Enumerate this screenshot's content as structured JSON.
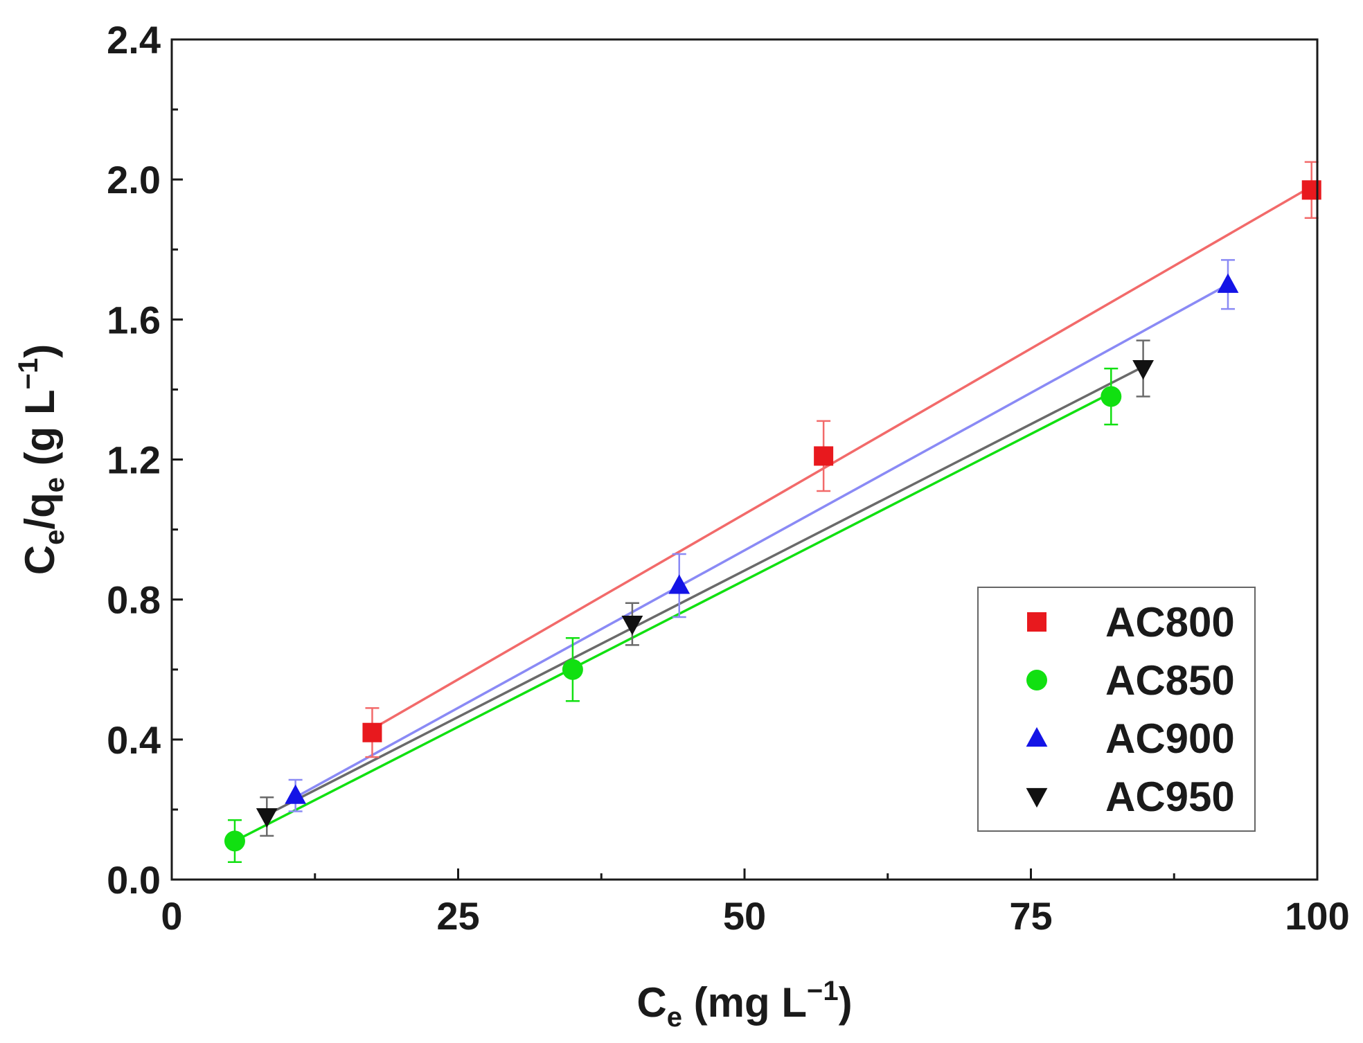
{
  "chart_data": {
    "type": "scatter",
    "xlim": [
      0,
      100
    ],
    "ylim": [
      0.0,
      2.4
    ],
    "x_ticks": [
      {
        "value": 0,
        "label": "0"
      },
      {
        "value": 25,
        "label": "25"
      },
      {
        "value": 50,
        "label": "50"
      },
      {
        "value": 75,
        "label": "75"
      },
      {
        "value": 100,
        "label": "100"
      }
    ],
    "y_ticks": [
      {
        "value": 0.0,
        "label": "0.0"
      },
      {
        "value": 0.4,
        "label": "0.4"
      },
      {
        "value": 0.8,
        "label": "0.8"
      },
      {
        "value": 1.2,
        "label": "1.2"
      },
      {
        "value": 1.6,
        "label": "1.6"
      },
      {
        "value": 2.0,
        "label": "2.0"
      },
      {
        "value": 2.4,
        "label": "2.4"
      }
    ],
    "xlabel": {
      "main": "C",
      "sub": "e",
      "rest": " (mg L",
      "sup": "−1",
      "close": ")"
    },
    "ylabel": {
      "main1": "C",
      "sub1": "e",
      "mid": "/q",
      "sub2": "e",
      "rest": " (g L",
      "sup": "−1",
      "close": ")"
    },
    "grid": false,
    "legend_position": "bottom-right",
    "series": [
      {
        "name": "AC800",
        "marker": "square",
        "color": "#e8191e",
        "line_color": "#f26a6a",
        "points": [
          {
            "x": 17.5,
            "y": 0.42,
            "err": 0.07
          },
          {
            "x": 56.9,
            "y": 1.21,
            "err": 0.1
          },
          {
            "x": 99.5,
            "y": 1.97,
            "err": 0.08
          }
        ],
        "fit": [
          [
            17.5,
            0.43
          ],
          [
            99.5,
            1.98
          ]
        ]
      },
      {
        "name": "AC850",
        "marker": "circle",
        "color": "#11e011",
        "line_color": "#11e011",
        "points": [
          {
            "x": 5.5,
            "y": 0.11,
            "err": 0.06
          },
          {
            "x": 35.0,
            "y": 0.6,
            "err": 0.09
          },
          {
            "x": 82.0,
            "y": 1.38,
            "err": 0.08
          }
        ],
        "fit": [
          [
            5.5,
            0.11
          ],
          [
            82.0,
            1.39
          ]
        ]
      },
      {
        "name": "AC900",
        "marker": "triangle-up",
        "color": "#1414e6",
        "line_color": "#8a8af5",
        "points": [
          {
            "x": 10.8,
            "y": 0.24,
            "err": 0.045
          },
          {
            "x": 44.3,
            "y": 0.84,
            "err": 0.09
          },
          {
            "x": 92.2,
            "y": 1.7,
            "err": 0.07
          }
        ],
        "fit": [
          [
            10.8,
            0.235
          ],
          [
            92.2,
            1.7
          ]
        ]
      },
      {
        "name": "AC950",
        "marker": "triangle-down",
        "color": "#111111",
        "line_color": "#6a6a6a",
        "points": [
          {
            "x": 8.3,
            "y": 0.18,
            "err": 0.055
          },
          {
            "x": 40.2,
            "y": 0.73,
            "err": 0.06
          },
          {
            "x": 84.8,
            "y": 1.46,
            "err": 0.08
          }
        ],
        "fit": [
          [
            8.3,
            0.185
          ],
          [
            84.8,
            1.465
          ]
        ]
      }
    ]
  }
}
